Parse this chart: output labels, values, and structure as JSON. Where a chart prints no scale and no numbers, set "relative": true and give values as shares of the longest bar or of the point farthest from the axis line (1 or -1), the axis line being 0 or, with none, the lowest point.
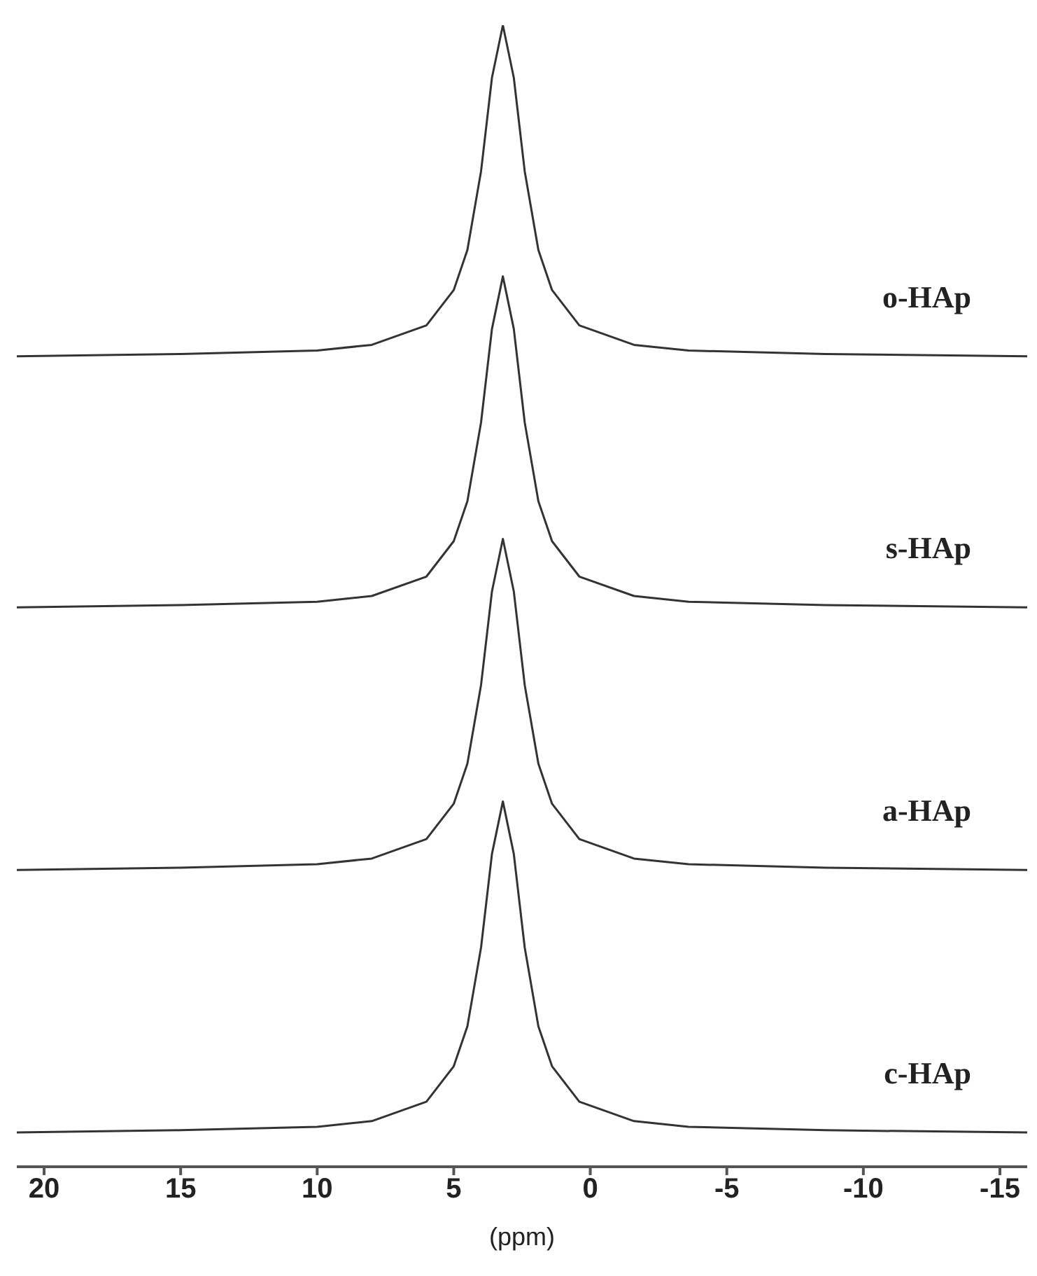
{
  "chart_data": {
    "type": "line",
    "relative": true,
    "xlabel": "(ppm)",
    "xlim": [
      21,
      -16
    ],
    "xticks": [
      20,
      15,
      10,
      5,
      0,
      -5,
      -10,
      -15
    ],
    "x": [
      21,
      15,
      10,
      8,
      6,
      5,
      4.5,
      4,
      3.6,
      3.2,
      2.8,
      2.4,
      1.9,
      1.4,
      0.4,
      -1.6,
      -3.6,
      -8.6,
      -16
    ],
    "series": [
      {
        "name": "o-HAp",
        "color": "#333333",
        "values": [
          0.71,
          0.712,
          0.715,
          0.72,
          0.737,
          0.768,
          0.803,
          0.872,
          0.954,
          1.0,
          0.954,
          0.872,
          0.803,
          0.768,
          0.737,
          0.72,
          0.715,
          0.712,
          0.71
        ]
      },
      {
        "name": "s-HAp",
        "color": "#333333",
        "values": [
          0.49,
          0.492,
          0.495,
          0.5,
          0.517,
          0.548,
          0.583,
          0.652,
          0.734,
          0.78,
          0.734,
          0.652,
          0.583,
          0.548,
          0.517,
          0.5,
          0.495,
          0.492,
          0.49
        ]
      },
      {
        "name": "a-HAp",
        "color": "#333333",
        "values": [
          0.26,
          0.262,
          0.265,
          0.27,
          0.287,
          0.318,
          0.353,
          0.422,
          0.504,
          0.55,
          0.504,
          0.422,
          0.353,
          0.318,
          0.287,
          0.27,
          0.265,
          0.262,
          0.26
        ]
      },
      {
        "name": "c-HAp",
        "color": "#333333",
        "values": [
          0.03,
          0.032,
          0.035,
          0.04,
          0.057,
          0.088,
          0.123,
          0.192,
          0.274,
          0.32,
          0.274,
          0.192,
          0.123,
          0.088,
          0.057,
          0.04,
          0.035,
          0.032,
          0.03
        ]
      }
    ]
  }
}
